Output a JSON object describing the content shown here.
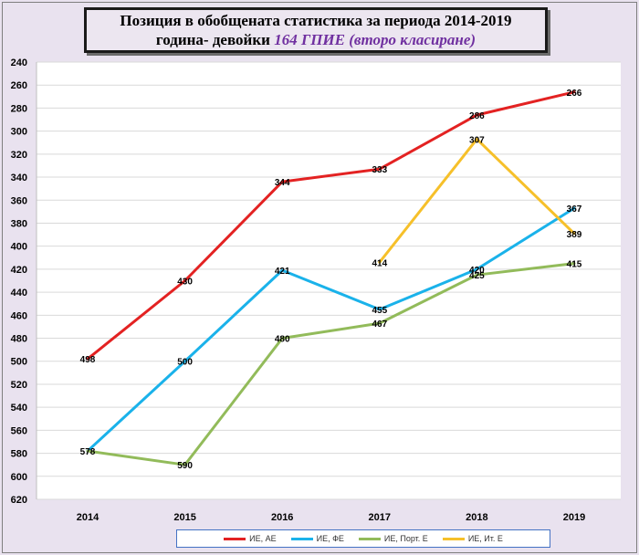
{
  "chart_data": {
    "type": "line",
    "title_line1": "Позиция в обобщената статистика за периода 2014-2019",
    "title_line2": "година- девойки",
    "title_highlight": "164 ГПИЕ (второ класиране)",
    "categories": [
      "2014",
      "2015",
      "2016",
      "2017",
      "2018",
      "2019"
    ],
    "y_ticks": [
      "240",
      "260",
      "280",
      "300",
      "320",
      "340",
      "360",
      "380",
      "400",
      "420",
      "440",
      "460",
      "480",
      "500",
      "520",
      "540",
      "560",
      "580",
      "600",
      "620"
    ],
    "ylim": [
      240,
      620
    ],
    "y_inverted": true,
    "grid": true,
    "legend_position": "bottom",
    "series": [
      {
        "name": "ИЕ, АЕ",
        "color": "#e32222",
        "values": [
          498,
          430,
          344,
          333,
          286,
          266
        ],
        "labels": [
          "498",
          "430",
          "344",
          "333",
          "286",
          "266"
        ]
      },
      {
        "name": "ИЕ, ФЕ",
        "color": "#1ab2ea",
        "values": [
          578,
          500,
          421,
          455,
          420,
          367
        ],
        "labels": [
          "578",
          "500",
          "421",
          "455",
          "420",
          "367"
        ]
      },
      {
        "name": "ИЕ, Порт. Е",
        "color": "#92bb5a",
        "values": [
          578,
          590,
          480,
          467,
          425,
          415
        ],
        "labels": [
          "",
          "590",
          "480",
          "467",
          "425",
          "415"
        ]
      },
      {
        "name": "ИЕ, Ит. Е",
        "color": "#f6c02a",
        "values": [
          null,
          null,
          null,
          414,
          307,
          389
        ],
        "labels": [
          "",
          "",
          "",
          "414",
          "307",
          "389"
        ]
      }
    ]
  }
}
